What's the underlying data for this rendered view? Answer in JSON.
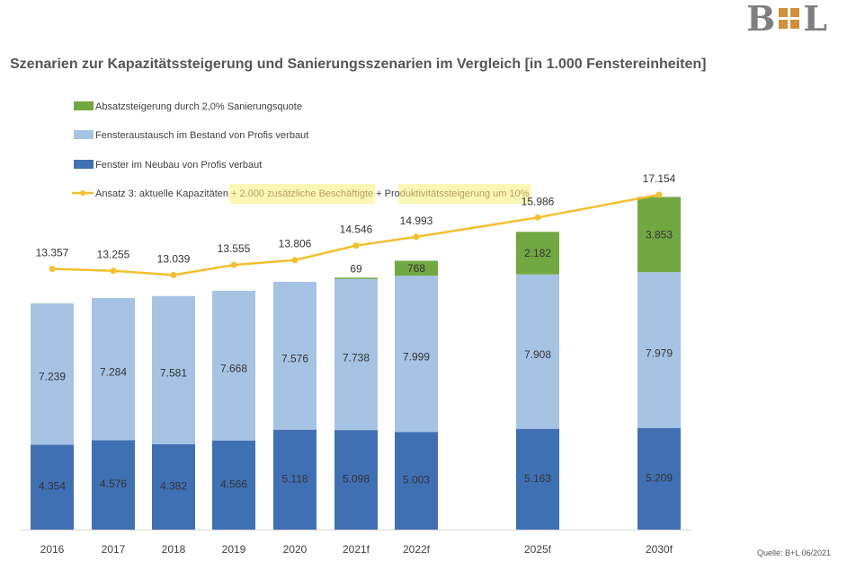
{
  "logo": {
    "left": "B",
    "right": "L"
  },
  "title": "Szenarien zur Kapazitätssteigerung und Sanierungsszenarien im Vergleich [in 1.000 Fenstereinheiten]",
  "source": "Quelle: B+L 06/2021",
  "colors": {
    "neubau": "#4070b4",
    "bestand": "#a7c3e4",
    "sanierung": "#72a842",
    "line": "#f2c02f",
    "text": "#404040"
  },
  "legend": [
    {
      "key": "sanierung",
      "type": "box",
      "parts": [
        {
          "text": "Absatzsteigerung durch 2,0% Sanierungsquote",
          "hl": false
        }
      ]
    },
    {
      "key": "bestand",
      "type": "box",
      "parts": [
        {
          "text": "Fensteraustausch im Bestand von Profis verbaut",
          "hl": false
        }
      ]
    },
    {
      "key": "neubau",
      "type": "box",
      "parts": [
        {
          "text": "Fenster im Neubau von Profis verbaut",
          "hl": false
        }
      ]
    },
    {
      "key": "line",
      "type": "line",
      "parts": [
        {
          "text": "Ansatz 3: aktuelle Kapazitäten ",
          "hl": false
        },
        {
          "text": "+ 2.000 zusätzliche Beschäftigte",
          "hl": true
        },
        {
          "text": " + Pro",
          "hl": false
        },
        {
          "text": "duktivitätssteigerung um 10%",
          "hl": true
        }
      ]
    }
  ],
  "chart_data": {
    "type": "bar",
    "stacked": true,
    "categories": [
      "2016",
      "2017",
      "2018",
      "2019",
      "2020",
      "2021f",
      "2022f",
      "2025f",
      "2030f"
    ],
    "series": [
      {
        "name": "Fenster im Neubau von Profis verbaut",
        "values": [
          4354,
          4576,
          4382,
          4566,
          5118,
          5098,
          5003,
          5163,
          5209
        ],
        "labels": [
          "4.354",
          "4.576",
          "4.382",
          "4.566",
          "5.118",
          "5.098",
          "5.003",
          "5.163",
          "5.209"
        ]
      },
      {
        "name": "Fensteraustausch im Bestand von Profis verbaut",
        "values": [
          7239,
          7284,
          7581,
          7668,
          7576,
          7738,
          7999,
          7908,
          7979
        ],
        "labels": [
          "7.239",
          "7.284",
          "7.581",
          "7.668",
          "7.576",
          "7.738",
          "7.999",
          "7.908",
          "7.979"
        ]
      },
      {
        "name": "Absatzsteigerung durch 2,0% Sanierungsquote",
        "values": [
          0,
          0,
          0,
          0,
          0,
          69,
          768,
          2182,
          3853
        ],
        "labels": [
          "",
          "",
          "",
          "",
          "",
          "69",
          "768",
          "2.182",
          "3.853"
        ]
      }
    ],
    "line": {
      "name": "Ansatz 3: aktuelle Kapazitäten + 2.000 zusätzliche Beschäftigte + Produktivitätssteigerung um 10%",
      "values": [
        13357,
        13255,
        13039,
        13555,
        13806,
        14546,
        14993,
        15986,
        17154
      ],
      "labels": [
        "13.357",
        "13.255",
        "13.039",
        "13.555",
        "13.806",
        "14.546",
        "14.993",
        "15.986",
        "17.154"
      ]
    },
    "ylim": [
      0,
      17500
    ],
    "grid": false,
    "legend_position": "top-left"
  }
}
